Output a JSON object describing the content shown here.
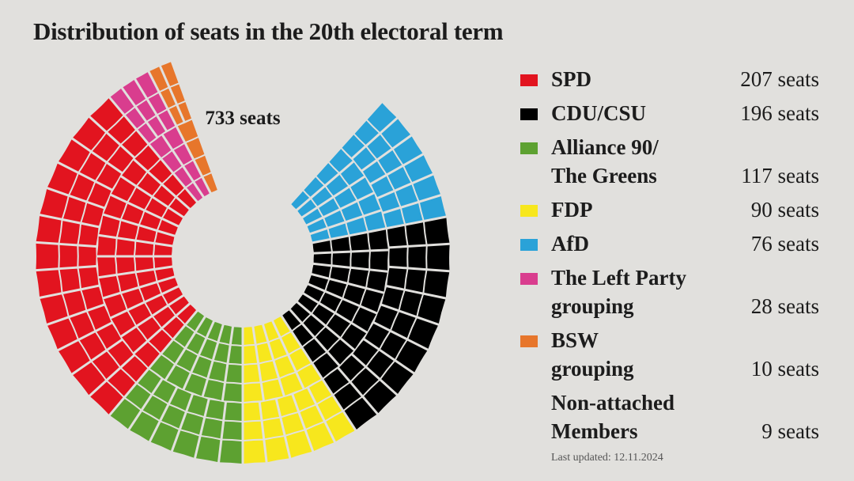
{
  "title": "Distribution of seats in the 20th electoral term",
  "chart_data": {
    "type": "parliament",
    "title": "Distribution of seats in the 20th electoral term",
    "total_label": "733 seats",
    "total": 733,
    "series": [
      {
        "name": "SPD",
        "values": [
          207
        ],
        "color": "#e2141f",
        "label": "207 seats"
      },
      {
        "name": "CDU/CSU",
        "values": [
          196
        ],
        "color": "#000000",
        "label": "196 seats"
      },
      {
        "name": "Alliance 90/\nThe Greens",
        "values": [
          117
        ],
        "color": "#5da131",
        "label": "117 seats"
      },
      {
        "name": "FDP",
        "values": [
          90
        ],
        "color": "#f7e71d",
        "label": "90 seats"
      },
      {
        "name": "AfD",
        "values": [
          76
        ],
        "color": "#2aa2d8",
        "label": "76 seats"
      },
      {
        "name": "The Left Party\ngrouping",
        "values": [
          28
        ],
        "color": "#d93d8e",
        "label": "28 seats"
      },
      {
        "name": "BSW\ngrouping",
        "values": [
          10
        ],
        "color": "#e7762b",
        "label": "10 seats"
      },
      {
        "name": "Non-attached\nMembers",
        "values": [
          9
        ],
        "color": null,
        "label": "9 seats"
      }
    ]
  },
  "footer": {
    "updated": "Last updated: 12.11.2024"
  }
}
